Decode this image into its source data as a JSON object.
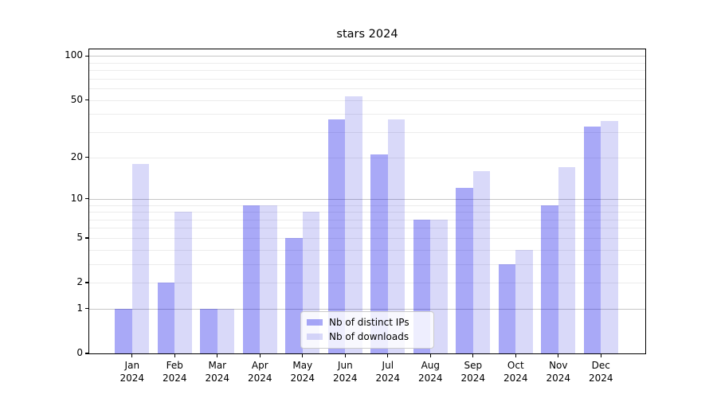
{
  "title": "stars 2024",
  "legend": {
    "items": [
      {
        "label": "Nb of distinct IPs",
        "color": "rgba(2,2,232,0.34)"
      },
      {
        "label": "Nb of downloads",
        "color": "rgba(2,2,215,0.15)"
      }
    ]
  },
  "chart_data": {
    "type": "bar",
    "title": "stars 2024",
    "categories": [
      "Jan 2024",
      "Feb 2024",
      "Mar 2024",
      "Apr 2024",
      "May 2024",
      "Jun 2024",
      "Jul 2024",
      "Aug 2024",
      "Sep 2024",
      "Oct 2024",
      "Nov 2024",
      "Dec 2024"
    ],
    "x_tick_months": [
      "Jan",
      "Feb",
      "Mar",
      "Apr",
      "May",
      "Jun",
      "Jul",
      "Aug",
      "Sep",
      "Oct",
      "Nov",
      "Dec"
    ],
    "x_tick_year": "2024",
    "series": [
      {
        "key": "distinct-ips",
        "name": "Nb of distinct IPs",
        "color": "rgba(2,2,232,0.34)",
        "values": [
          1,
          2,
          1,
          9,
          5,
          37,
          21,
          7,
          12,
          3,
          9,
          33
        ]
      },
      {
        "key": "downloads",
        "name": "Nb of downloads",
        "color": "rgba(2,2,215,0.15)",
        "values": [
          18,
          8,
          1,
          9,
          8,
          53,
          37,
          7,
          16,
          4,
          17,
          36
        ]
      }
    ],
    "xlabel": "",
    "ylabel": "",
    "yscale": "symlog (position proportional to ln(1+value))",
    "yticks": [
      0,
      1,
      2,
      5,
      10,
      20,
      50,
      100
    ],
    "ytick_labels": [
      "0",
      "1",
      "2",
      "5",
      "10",
      "20",
      "50",
      "100"
    ],
    "minor_grid_values": [
      2,
      3,
      4,
      5,
      6,
      7,
      8,
      9,
      20,
      30,
      40,
      50,
      60,
      70,
      80,
      90
    ],
    "major_grid_values": [
      1,
      10,
      100
    ],
    "ylim": [
      0,
      111
    ],
    "grid": true,
    "legend_position": "lower center"
  }
}
